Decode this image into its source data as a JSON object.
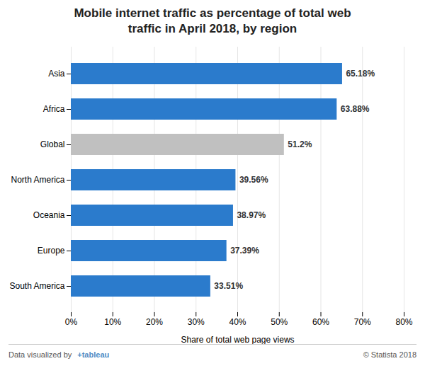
{
  "chart_data": {
    "type": "bar",
    "orientation": "horizontal",
    "title": "Mobile internet traffic as percentage of total web\ntraffic in April 2018, by region",
    "categories": [
      "Asia",
      "Africa",
      "Global",
      "North America",
      "Oceania",
      "Europe",
      "South America"
    ],
    "values": [
      65.18,
      63.88,
      51.2,
      39.56,
      38.97,
      37.39,
      33.51
    ],
    "value_labels": [
      "65.18%",
      "63.88%",
      "51.2%",
      "39.56%",
      "38.97%",
      "37.39%",
      "33.51%"
    ],
    "data_labels": true,
    "colors": [
      "#2b7bcc",
      "#2b7bcc",
      "#c0c0c0",
      "#2b7bcc",
      "#2b7bcc",
      "#2b7bcc",
      "#2b7bcc"
    ],
    "x_label": "Share of total web page views",
    "xlim": [
      0,
      80
    ],
    "xticks": [
      {
        "value": 0,
        "label": "0%"
      },
      {
        "value": 10,
        "label": "10%"
      },
      {
        "value": 20,
        "label": "20%"
      },
      {
        "value": 30,
        "label": "30%"
      },
      {
        "value": 40,
        "label": "40%"
      },
      {
        "value": 50,
        "label": "50%"
      },
      {
        "value": 60,
        "label": "60%"
      },
      {
        "value": 70,
        "label": "70%"
      },
      {
        "value": 80,
        "label": "80%"
      }
    ],
    "grid": true,
    "annotations": [
      "Data visualized by",
      "+tableau",
      "© Statista 2018"
    ]
  }
}
